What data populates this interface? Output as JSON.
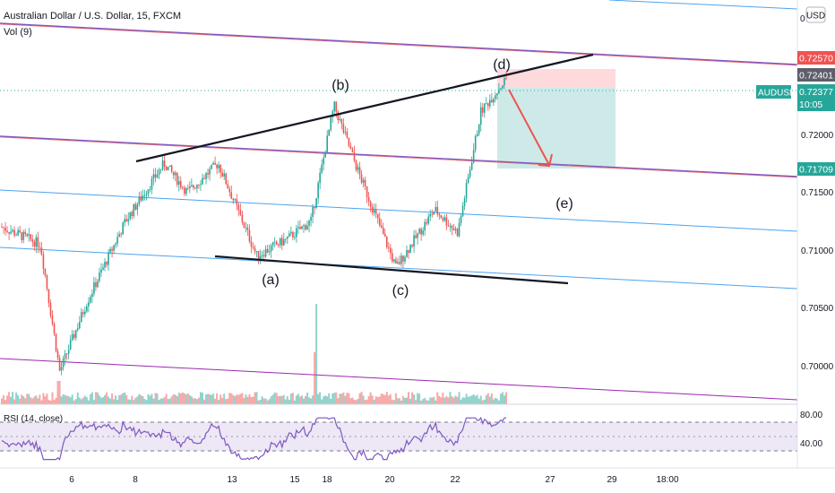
{
  "header": {
    "title": "Australian Dollar / U.S. Dollar, 15, FXCM",
    "volume_label": "Vol (9)",
    "currency": "USD"
  },
  "rsi": {
    "label": "RSI (14, close)",
    "levels": [
      "80.00",
      "40.00"
    ]
  },
  "price_badges": {
    "stop": "0.72570",
    "entry": "0.72401",
    "symbol": "AUDUSD",
    "last": "0.72377",
    "countdown": "10:05",
    "target": "0.71709"
  },
  "wave_labels": [
    "(a)",
    "(b)",
    "(c)",
    "(d)",
    "(e)"
  ],
  "colors": {
    "up": "#26a69a",
    "down": "#ef5350",
    "channel_blue": "#4da3f0",
    "channel_purple": "#9c27b0",
    "rsi_line": "#7e57c2",
    "rsi_band": "#ede7f6",
    "target_zone": "#b2dfdb",
    "stop_zone": "#ffcdd2"
  },
  "chart_data": {
    "type": "candlestick",
    "symbol": "AUDUSD",
    "timeframe": "15",
    "y_axis_ticks": [
      "0.72000",
      "0.71500",
      "0.71000",
      "0.70500",
      "0.70000"
    ],
    "y_axis_top_tick": "0",
    "x_axis_ticks": [
      "6",
      "8",
      "13",
      "15",
      "18",
      "20",
      "22",
      "27",
      "29",
      "18:00"
    ],
    "ylim": [
      0.6975,
      0.7285
    ],
    "price_path": [
      {
        "x": 0,
        "price": 0.712
      },
      {
        "x": 0.05,
        "price": 0.7105
      },
      {
        "x": 0.075,
        "price": 0.6995
      },
      {
        "x": 0.11,
        "price": 0.7055
      },
      {
        "x": 0.16,
        "price": 0.7125
      },
      {
        "x": 0.21,
        "price": 0.7175
      },
      {
        "x": 0.24,
        "price": 0.715
      },
      {
        "x": 0.28,
        "price": 0.7175
      },
      {
        "x": 0.33,
        "price": 0.7095
      },
      {
        "x": 0.37,
        "price": 0.711
      },
      {
        "x": 0.4,
        "price": 0.7125
      },
      {
        "x": 0.43,
        "price": 0.7225
      },
      {
        "x": 0.46,
        "price": 0.717
      },
      {
        "x": 0.51,
        "price": 0.7085
      },
      {
        "x": 0.56,
        "price": 0.7135
      },
      {
        "x": 0.59,
        "price": 0.7115
      },
      {
        "x": 0.62,
        "price": 0.722
      },
      {
        "x": 0.655,
        "price": 0.725
      }
    ],
    "position": {
      "entry": 0.72401,
      "stop": 0.7257,
      "target": 0.71709
    },
    "rsi_levels": [
      80,
      40
    ]
  }
}
